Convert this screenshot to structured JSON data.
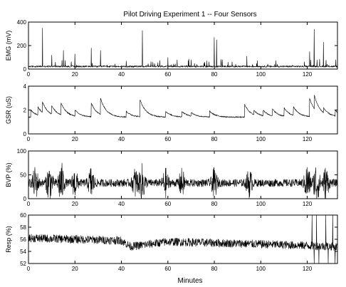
{
  "chart_data": {
    "type": "line",
    "title": "Pilot Driving Experiment 1 -- Four Sensors",
    "xlabel": "Minutes",
    "grid": false,
    "legend": "none",
    "colors": {
      "line": "#000000",
      "axes": "#000000",
      "background": "#ffffff"
    },
    "x_ticks": [
      "0",
      "20",
      "40",
      "60",
      "80",
      "100",
      "120"
    ],
    "x_tick_values": [
      0,
      20,
      40,
      60,
      80,
      100,
      120
    ],
    "xlim": [
      0,
      133
    ],
    "panels": [
      {
        "ylabel": "EMG (mV)",
        "ylim": [
          0,
          400
        ],
        "y_ticks": [
          "0",
          "200",
          "400"
        ],
        "y_tick_values": [
          0,
          200,
          400
        ],
        "baseline": 20,
        "noise": 12,
        "spikes": [
          {
            "x": 6,
            "y": 350
          },
          {
            "x": 10,
            "y": 120
          },
          {
            "x": 15,
            "y": 160
          },
          {
            "x": 20,
            "y": 130
          },
          {
            "x": 27,
            "y": 180
          },
          {
            "x": 31,
            "y": 160
          },
          {
            "x": 49,
            "y": 330
          },
          {
            "x": 60,
            "y": 100
          },
          {
            "x": 70,
            "y": 80
          },
          {
            "x": 80,
            "y": 270
          },
          {
            "x": 81,
            "y": 250
          },
          {
            "x": 94,
            "y": 110
          },
          {
            "x": 121,
            "y": 150
          },
          {
            "x": 123,
            "y": 340
          },
          {
            "x": 127,
            "y": 230
          }
        ]
      },
      {
        "ylabel": "GSR (uS)",
        "ylim": [
          0,
          4
        ],
        "y_ticks": [
          "0",
          "2",
          "4"
        ],
        "y_tick_values": [
          0,
          2,
          4
        ],
        "baseline": 1.4,
        "noise": 0.04,
        "events": [
          {
            "x": 1,
            "y": 2.0
          },
          {
            "x": 4,
            "y": 2.3
          },
          {
            "x": 6,
            "y": 2.7
          },
          {
            "x": 10,
            "y": 2.4
          },
          {
            "x": 14,
            "y": 2.6
          },
          {
            "x": 20,
            "y": 2.0
          },
          {
            "x": 27,
            "y": 2.6
          },
          {
            "x": 31,
            "y": 3.0
          },
          {
            "x": 42,
            "y": 1.9
          },
          {
            "x": 48,
            "y": 2.9
          },
          {
            "x": 59,
            "y": 1.9
          },
          {
            "x": 66,
            "y": 1.9
          },
          {
            "x": 70,
            "y": 1.8
          },
          {
            "x": 78,
            "y": 1.9
          },
          {
            "x": 93,
            "y": 2.5
          },
          {
            "x": 97,
            "y": 2.0
          },
          {
            "x": 101,
            "y": 2.0
          },
          {
            "x": 105,
            "y": 2.1
          },
          {
            "x": 110,
            "y": 2.2
          },
          {
            "x": 114,
            "y": 2.3
          },
          {
            "x": 121,
            "y": 3.0
          },
          {
            "x": 123,
            "y": 3.3
          },
          {
            "x": 127,
            "y": 2.2
          },
          {
            "x": 132,
            "y": 2.0
          }
        ]
      },
      {
        "ylabel": "BVP (%)",
        "ylim": [
          0,
          100
        ],
        "y_ticks": [
          "0",
          "50",
          "100"
        ],
        "y_tick_values": [
          0,
          50,
          100
        ],
        "baseline": 33,
        "noise": 8,
        "bursts": [
          {
            "x": 3,
            "amp": 30
          },
          {
            "x": 9,
            "amp": 35
          },
          {
            "x": 14,
            "amp": 40
          },
          {
            "x": 20,
            "amp": 25
          },
          {
            "x": 27,
            "amp": 30
          },
          {
            "x": 46,
            "amp": 28
          },
          {
            "x": 49,
            "amp": 35
          },
          {
            "x": 59,
            "amp": 25
          },
          {
            "x": 66,
            "amp": 25
          },
          {
            "x": 80,
            "amp": 25
          },
          {
            "x": 95,
            "amp": 25
          },
          {
            "x": 120,
            "amp": 35
          },
          {
            "x": 124,
            "amp": 40
          },
          {
            "x": 128,
            "amp": 30
          }
        ]
      },
      {
        "ylabel": "Resp (%)",
        "ylim": [
          52,
          60
        ],
        "y_ticks": [
          "52",
          "54",
          "56",
          "58",
          "60"
        ],
        "y_tick_values": [
          52,
          54,
          56,
          58,
          60
        ],
        "trend": [
          {
            "x": 0,
            "y": 56.2
          },
          {
            "x": 40,
            "y": 55.8
          },
          {
            "x": 44,
            "y": 54.8
          },
          {
            "x": 60,
            "y": 55.6
          },
          {
            "x": 100,
            "y": 55.2
          },
          {
            "x": 133,
            "y": 54.8
          }
        ],
        "noise": 0.7,
        "dropouts": [
          {
            "x": 122,
            "y": 60
          },
          {
            "x": 123,
            "y": 52
          },
          {
            "x": 124,
            "y": 60
          },
          {
            "x": 125,
            "y": 52
          },
          {
            "x": 128,
            "y": 60
          },
          {
            "x": 129,
            "y": 52
          },
          {
            "x": 131,
            "y": 60
          },
          {
            "x": 132,
            "y": 52
          }
        ]
      }
    ]
  }
}
